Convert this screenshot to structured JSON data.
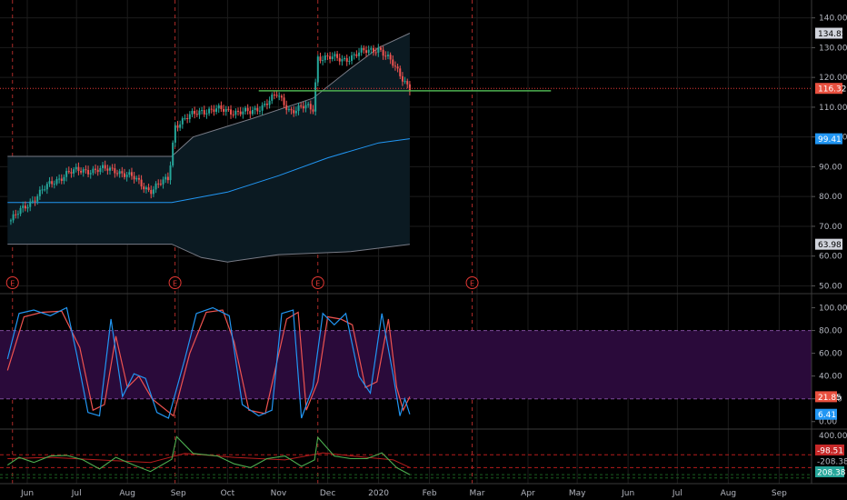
{
  "colors": {
    "background": "#000000",
    "grid": "#1c1c1c",
    "axis_text": "#b2b5be",
    "candle_up": "#26a69a",
    "candle_down": "#ef5350",
    "band_fill": "#0b1a22",
    "band_line": "#787b86",
    "ma_line": "#2196f3",
    "support_line": "#4caf50",
    "price_line": "#e53935",
    "earnings": "#e53935",
    "stoch_k": "#2196f3",
    "stoch_d": "#ef5350",
    "stoch_zone": "#2a0a3a",
    "cci_line": "#4caf50",
    "cci_signal": "#b71c1c"
  },
  "chart_data": [
    {
      "type": "candlestick",
      "panel": "price",
      "ylim": [
        48,
        146
      ],
      "y_ticks": [
        "140.00",
        "130.00",
        "120.00",
        "110.00",
        "100.00",
        "90.00",
        "80.00",
        "70.00",
        "60.00",
        "50.00"
      ],
      "x_ticks": [
        "Jun",
        "Jul",
        "Aug",
        "Sep",
        "Oct",
        "Nov",
        "Dec",
        "2020",
        "Feb",
        "Mar",
        "Apr",
        "May",
        "Jun",
        "Jul",
        "Aug",
        "Sep"
      ],
      "last_price_label": "116.32",
      "price_labels": [
        {
          "text": "134.85",
          "value": 134.85,
          "kind": "upper-band"
        },
        {
          "text": "116.32",
          "value": 116.32,
          "kind": "last-price"
        },
        {
          "text": "99.41",
          "value": 99.41,
          "kind": "moving-average"
        },
        {
          "text": "63.98",
          "value": 63.98,
          "kind": "lower-band"
        }
      ],
      "support_line_value": 115.5,
      "earnings_markers": [
        "E",
        "E",
        "E",
        "E"
      ],
      "close_path": [
        [
          "2019-05-22",
          72
        ],
        [
          "2019-06-10",
          82
        ],
        [
          "2019-06-25",
          88
        ],
        [
          "2019-07-10",
          89
        ],
        [
          "2019-07-25",
          89
        ],
        [
          "2019-08-05",
          86
        ],
        [
          "2019-08-15",
          82
        ],
        [
          "2019-08-26",
          86
        ],
        [
          "2019-08-30",
          104
        ],
        [
          "2019-09-15",
          109
        ],
        [
          "2019-09-30",
          109
        ],
        [
          "2019-10-15",
          108
        ],
        [
          "2019-10-31",
          114
        ],
        [
          "2019-11-08",
          109
        ],
        [
          "2019-11-18",
          110
        ],
        [
          "2019-11-22",
          109
        ],
        [
          "2019-11-25",
          127
        ],
        [
          "2019-12-10",
          126
        ],
        [
          "2019-12-20",
          128
        ],
        [
          "2020-01-01",
          130
        ],
        [
          "2020-01-10",
          124
        ],
        [
          "2020-01-17",
          119
        ],
        [
          "2020-01-20",
          116.32
        ]
      ],
      "upper_band": [
        [
          "2019-05-20",
          93.5
        ],
        [
          "2019-08-28",
          93.5
        ],
        [
          "2019-09-10",
          100
        ],
        [
          "2019-10-15",
          106
        ],
        [
          "2019-11-22",
          113
        ],
        [
          "2019-12-15",
          123
        ],
        [
          "2020-01-01",
          130
        ],
        [
          "2020-01-20",
          134.85
        ]
      ],
      "lower_band": [
        [
          "2019-05-20",
          64
        ],
        [
          "2019-08-28",
          64
        ],
        [
          "2019-09-15",
          59.5
        ],
        [
          "2019-10-01",
          58
        ],
        [
          "2019-11-01",
          60.5
        ],
        [
          "2019-12-15",
          61.5
        ],
        [
          "2020-01-20",
          63.98
        ]
      ],
      "moving_average": [
        [
          "2019-05-20",
          78
        ],
        [
          "2019-08-28",
          78
        ],
        [
          "2019-10-01",
          81.5
        ],
        [
          "2019-11-01",
          87
        ],
        [
          "2019-12-01",
          93
        ],
        [
          "2020-01-01",
          98
        ],
        [
          "2020-01-20",
          99.41
        ]
      ]
    },
    {
      "type": "line",
      "panel": "stochastic",
      "ylim": [
        -5,
        110
      ],
      "y_ticks": [
        "100.00",
        "80.00",
        "60.00",
        "40.00",
        "20.00",
        "0.00"
      ],
      "upper_level": 80,
      "lower_level": 20,
      "labels": [
        "21.85",
        "6.41"
      ],
      "series": [
        {
          "key": "k",
          "values": [
            [
              "2019-05-20",
              55
            ],
            [
              "2019-05-27",
              95
            ],
            [
              "2019-06-05",
              98
            ],
            [
              "2019-06-15",
              93
            ],
            [
              "2019-06-25",
              100
            ],
            [
              "2019-07-01",
              60
            ],
            [
              "2019-07-08",
              8
            ],
            [
              "2019-07-15",
              5
            ],
            [
              "2019-07-22",
              90
            ],
            [
              "2019-07-29",
              22
            ],
            [
              "2019-08-05",
              42
            ],
            [
              "2019-08-12",
              38
            ],
            [
              "2019-08-19",
              8
            ],
            [
              "2019-08-26",
              3
            ],
            [
              "2019-09-05",
              55
            ],
            [
              "2019-09-12",
              95
            ],
            [
              "2019-09-22",
              100
            ],
            [
              "2019-10-02",
              93
            ],
            [
              "2019-10-10",
              15
            ],
            [
              "2019-10-20",
              5
            ],
            [
              "2019-10-28",
              10
            ],
            [
              "2019-11-03",
              95
            ],
            [
              "2019-11-10",
              98
            ],
            [
              "2019-11-15",
              3
            ],
            [
              "2019-11-22",
              30
            ],
            [
              "2019-11-28",
              95
            ],
            [
              "2019-12-05",
              85
            ],
            [
              "2019-12-12",
              95
            ],
            [
              "2019-12-20",
              40
            ],
            [
              "2019-12-27",
              25
            ],
            [
              "2020-01-03",
              95
            ],
            [
              "2020-01-10",
              40
            ],
            [
              "2020-01-14",
              5
            ],
            [
              "2020-01-17",
              20
            ],
            [
              "2020-01-20",
              6.41
            ]
          ]
        },
        {
          "key": "d",
          "values": [
            [
              "2019-05-20",
              45
            ],
            [
              "2019-05-30",
              92
            ],
            [
              "2019-06-10",
              96
            ],
            [
              "2019-06-22",
              97
            ],
            [
              "2019-07-03",
              65
            ],
            [
              "2019-07-11",
              10
            ],
            [
              "2019-07-18",
              15
            ],
            [
              "2019-07-25",
              75
            ],
            [
              "2019-08-01",
              30
            ],
            [
              "2019-08-08",
              40
            ],
            [
              "2019-08-16",
              20
            ],
            [
              "2019-08-29",
              5
            ],
            [
              "2019-09-08",
              60
            ],
            [
              "2019-09-18",
              96
            ],
            [
              "2019-09-28",
              98
            ],
            [
              "2019-10-05",
              70
            ],
            [
              "2019-10-14",
              10
            ],
            [
              "2019-10-24",
              7
            ],
            [
              "2019-11-06",
              90
            ],
            [
              "2019-11-13",
              96
            ],
            [
              "2019-11-18",
              10
            ],
            [
              "2019-11-25",
              35
            ],
            [
              "2019-12-01",
              92
            ],
            [
              "2019-12-09",
              90
            ],
            [
              "2019-12-16",
              85
            ],
            [
              "2019-12-24",
              30
            ],
            [
              "2019-12-31",
              35
            ],
            [
              "2020-01-07",
              90
            ],
            [
              "2020-01-12",
              30
            ],
            [
              "2020-01-16",
              10
            ],
            [
              "2020-01-20",
              21.85
            ]
          ]
        }
      ]
    },
    {
      "type": "line",
      "panel": "cci",
      "ylim": [
        -320,
        470
      ],
      "y_ticks": [
        "400.00"
      ],
      "reference_levels": [
        100,
        -100
      ],
      "labels": [
        "-98.51",
        "-208.38",
        "208.38"
      ],
      "series": [
        {
          "key": "cci",
          "values": [
            [
              "2019-05-20",
              -60
            ],
            [
              "2019-05-27",
              60
            ],
            [
              "2019-06-05",
              -20
            ],
            [
              "2019-06-15",
              80
            ],
            [
              "2019-06-25",
              90
            ],
            [
              "2019-07-05",
              20
            ],
            [
              "2019-07-15",
              -120
            ],
            [
              "2019-07-25",
              60
            ],
            [
              "2019-08-05",
              -60
            ],
            [
              "2019-08-15",
              -160
            ],
            [
              "2019-08-28",
              30
            ],
            [
              "2019-08-31",
              380
            ],
            [
              "2019-09-10",
              120
            ],
            [
              "2019-09-25",
              80
            ],
            [
              "2019-10-05",
              -40
            ],
            [
              "2019-10-15",
              -100
            ],
            [
              "2019-10-25",
              40
            ],
            [
              "2019-11-05",
              80
            ],
            [
              "2019-11-15",
              -80
            ],
            [
              "2019-11-23",
              20
            ],
            [
              "2019-11-25",
              370
            ],
            [
              "2019-12-05",
              80
            ],
            [
              "2019-12-15",
              40
            ],
            [
              "2019-12-25",
              40
            ],
            [
              "2020-01-03",
              130
            ],
            [
              "2020-01-12",
              -100
            ],
            [
              "2020-01-20",
              -208.38
            ]
          ]
        },
        {
          "key": "signal",
          "values": [
            [
              "2019-05-20",
              40
            ],
            [
              "2019-06-15",
              60
            ],
            [
              "2019-07-15",
              20
            ],
            [
              "2019-08-15",
              -20
            ],
            [
              "2019-09-05",
              120
            ],
            [
              "2019-10-05",
              60
            ],
            [
              "2019-11-05",
              20
            ],
            [
              "2019-11-28",
              130
            ],
            [
              "2019-12-20",
              70
            ],
            [
              "2020-01-10",
              20
            ],
            [
              "2020-01-20",
              -98.51
            ]
          ]
        }
      ]
    }
  ]
}
